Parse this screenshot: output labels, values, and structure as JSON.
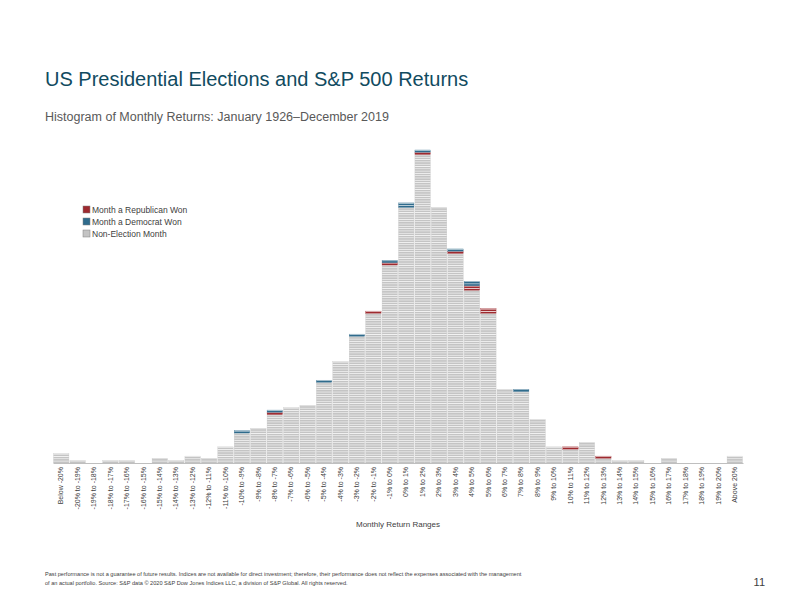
{
  "chart_data": {
    "type": "bar",
    "stacked": true,
    "title": "US Presidential Elections and S&P 500 Returns",
    "subtitle": "Histogram of Monthly Returns: January 1926–December 2019",
    "x_label": "Monthly Return Ranges",
    "tick_labels": "x",
    "legend": "upper left",
    "categories": [
      "Below -20%",
      "-20% to -19%",
      "-19% to -18%",
      "-18% to -17%",
      "-17% to -16%",
      "-16% to -15%",
      "-15% to -14%",
      "-14% to -13%",
      "-13% to -12%",
      "-12% to -11%",
      "-11% to -10%",
      "-10% to -9%",
      "-9% to -8%",
      "-8% to -7%",
      "-7% to -6%",
      "-6% to -5%",
      "-5% to -4%",
      "-4% to -3%",
      "-3% to -2%",
      "-2% to -1%",
      "-1% to 0%",
      "0% to 1%",
      "1% to 2%",
      "2% to 3%",
      "3% to 4%",
      "4% to 5%",
      "5% to 6%",
      "6% to 7%",
      "7% to 8%",
      "8% to 9%",
      "9% to 10%",
      "10% to 11%",
      "11% to 12%",
      "12% to 13%",
      "13% to 14%",
      "14% to 15%",
      "15% to 16%",
      "16% to 17%",
      "17% to 18%",
      "18% to 19%",
      "19% to 20%",
      "Above 20%"
    ],
    "series": [
      {
        "name": "Month a Republican Won",
        "color": "#9e2a2f",
        "values": [
          0,
          0,
          0,
          0,
          0,
          0,
          0,
          0,
          0,
          0,
          0,
          0,
          0,
          1,
          0,
          0,
          0,
          0,
          0,
          1,
          1,
          0,
          1,
          0,
          1,
          2,
          2,
          0,
          0,
          0,
          0,
          1,
          0,
          1,
          0,
          0,
          0,
          0,
          0,
          0,
          0,
          0
        ]
      },
      {
        "name": "Month a Democrat Won",
        "color": "#2f6b8c",
        "values": [
          0,
          0,
          0,
          0,
          0,
          0,
          0,
          0,
          0,
          0,
          0,
          1,
          0,
          1,
          0,
          0,
          1,
          0,
          1,
          0,
          1,
          2,
          1,
          0,
          1,
          2,
          0,
          0,
          1,
          0,
          0,
          0,
          0,
          0,
          0,
          0,
          0,
          0,
          0,
          0,
          0,
          0
        ]
      },
      {
        "name": "Non-Election Month",
        "color": "#c4c4c4",
        "values": [
          4,
          1,
          0,
          1,
          1,
          0,
          2,
          1,
          3,
          2,
          7,
          13,
          15,
          21,
          24,
          25,
          35,
          44,
          55,
          65,
          86,
          111,
          134,
          111,
          91,
          75,
          65,
          32,
          31,
          19,
          7,
          6,
          9,
          2,
          1,
          1,
          0,
          2,
          0,
          0,
          0,
          3
        ]
      }
    ],
    "footnote": [
      "Past performance is not a guarantee of future results. Indices are not available for direct investment; therefore, their performance does not reflect the expenses associated with the management",
      "of an actual portfolio. Source: S&P data © 2020 S&P Dow Jones Indices LLC, a division of S&P Global. All rights reserved."
    ],
    "page_number": "11"
  }
}
